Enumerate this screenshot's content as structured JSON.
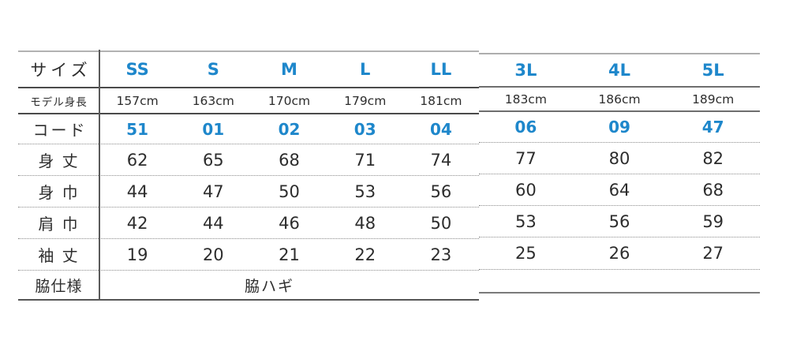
{
  "chart_data": {
    "type": "table",
    "columns": [
      "サイズ",
      "SS",
      "S",
      "M",
      "L",
      "LL",
      "3L",
      "4L",
      "5L"
    ],
    "rows": [
      [
        "モデル身長",
        "157cm",
        "163cm",
        "170cm",
        "179cm",
        "181cm",
        "183cm",
        "186cm",
        "189cm"
      ],
      [
        "コード",
        "51",
        "01",
        "02",
        "03",
        "04",
        "06",
        "09",
        "47"
      ],
      [
        "身丈",
        62,
        65,
        68,
        71,
        74,
        77,
        80,
        82
      ],
      [
        "身巾",
        44,
        47,
        50,
        53,
        56,
        60,
        64,
        68
      ],
      [
        "肩巾",
        42,
        44,
        46,
        48,
        50,
        53,
        56,
        59
      ],
      [
        "袖丈",
        19,
        20,
        21,
        22,
        23,
        25,
        26,
        27
      ],
      [
        "脇仕様",
        "脇ハギ"
      ]
    ],
    "layout_hints": {
      "accent_color_cells": "size labels and code row are blue",
      "split": "columns SS–LL and 3L–5L drawn as two adjoining sub-tables",
      "grid": "solid rules under size and model-height rows, dotted rules between measurement rows"
    }
  },
  "table": {
    "row_headers": [
      "サイズ",
      "モデル身長",
      "コード",
      "身 丈",
      "身 巾",
      "肩 巾",
      "袖 丈",
      "脇仕様"
    ],
    "left": {
      "sizes": [
        "SS",
        "S",
        "M",
        "L",
        "LL"
      ],
      "heights": [
        "157cm",
        "163cm",
        "170cm",
        "179cm",
        "181cm"
      ],
      "codes": [
        "51",
        "01",
        "02",
        "03",
        "04"
      ],
      "mitake": [
        "62",
        "65",
        "68",
        "71",
        "74"
      ],
      "mihaba": [
        "44",
        "47",
        "50",
        "53",
        "56"
      ],
      "katahaba": [
        "42",
        "44",
        "46",
        "48",
        "50"
      ],
      "sodetake": [
        "19",
        "20",
        "21",
        "22",
        "23"
      ],
      "waki": "脇ハギ"
    },
    "right": {
      "sizes": [
        "3L",
        "4L",
        "5L"
      ],
      "heights": [
        "183cm",
        "186cm",
        "189cm"
      ],
      "codes": [
        "06",
        "09",
        "47"
      ],
      "mitake": [
        "77",
        "80",
        "82"
      ],
      "mihaba": [
        "60",
        "64",
        "68"
      ],
      "katahaba": [
        "53",
        "56",
        "59"
      ],
      "sodetake": [
        "25",
        "26",
        "27"
      ]
    },
    "colors": {
      "accent_blue": "#1e87cb",
      "text": "#2d2d2d"
    }
  }
}
